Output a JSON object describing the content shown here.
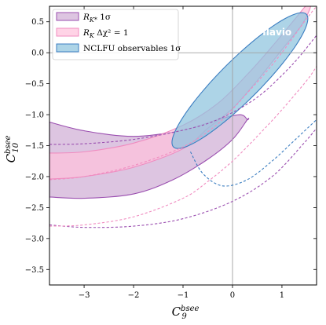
{
  "chart_data": {
    "type": "contour",
    "xlabel": {
      "main": "C",
      "sub": "9",
      "sup": "bsee"
    },
    "ylabel": {
      "main": "C",
      "sub": "10",
      "sup": "bsee"
    },
    "xlim": [
      -3.7,
      1.7
    ],
    "ylim": [
      -3.75,
      0.75
    ],
    "xticks": [
      -3,
      -2,
      -1,
      0,
      1
    ],
    "xtick_labels": [
      "−3",
      "−2",
      "−1",
      "0",
      "1"
    ],
    "yticks": [
      -3.5,
      -3.0,
      -2.5,
      -2.0,
      -1.5,
      -1.0,
      -0.5,
      0.0,
      0.5
    ],
    "ytick_labels": [
      "−3.5",
      "−3.0",
      "−2.5",
      "−2.0",
      "−1.5",
      "−1.0",
      "−0.5",
      "0.0",
      "0.5"
    ],
    "reference_lines": {
      "x": 0,
      "y": 0
    },
    "grid": false,
    "legend_position": "top-left",
    "watermark": "flavio",
    "series": [
      {
        "name": "R_{K*} 1σ",
        "legend_main": "R",
        "legend_sub": "K*",
        "legend_suffix": " 1σ",
        "color": "#9b4fb0",
        "fill": "#c8a2cf",
        "fill_opacity": 0.62,
        "band_outer": [
          [
            -3.7,
            -1.12
          ],
          [
            -3.0,
            -1.26
          ],
          [
            -2.0,
            -1.35
          ],
          [
            -1.0,
            -1.25
          ],
          [
            -0.3,
            -1.08
          ],
          [
            0.15,
            -1.0
          ],
          [
            0.3,
            -1.08
          ]
        ],
        "band_inner": [
          [
            0.3,
            -1.08
          ],
          [
            0.0,
            -1.4
          ],
          [
            -0.5,
            -1.72
          ],
          [
            -1.2,
            -2.05
          ],
          [
            -2.0,
            -2.28
          ],
          [
            -3.0,
            -2.35
          ],
          [
            -3.7,
            -2.33
          ]
        ],
        "dashed_curves": [
          [
            [
              -3.7,
              -1.48
            ],
            [
              -3.0,
              -1.47
            ],
            [
              -2.0,
              -1.4
            ],
            [
              -1.0,
              -1.25
            ],
            [
              -0.3,
              -1.08
            ],
            [
              0.5,
              -0.72
            ],
            [
              1.2,
              -0.2
            ],
            [
              1.7,
              0.28
            ]
          ],
          [
            [
              -3.7,
              -2.78
            ],
            [
              -3.0,
              -2.82
            ],
            [
              -2.0,
              -2.8
            ],
            [
              -1.0,
              -2.68
            ],
            [
              0.0,
              -2.4
            ],
            [
              0.8,
              -2.0
            ],
            [
              1.4,
              -1.5
            ],
            [
              1.7,
              -1.22
            ]
          ]
        ]
      },
      {
        "name": "R_K Δχ² = 1",
        "legend_main": "R",
        "legend_sub": "K",
        "legend_suffix": " Δχ² = 1",
        "color": "#f08cc0",
        "fill": "#ffc0dc",
        "fill_opacity": 0.7,
        "band_outer": [
          [
            -3.7,
            -1.62
          ],
          [
            -3.0,
            -1.6
          ],
          [
            -2.0,
            -1.46
          ],
          [
            -1.0,
            -1.17
          ],
          [
            -0.3,
            -0.82
          ],
          [
            0.3,
            -0.35
          ],
          [
            0.8,
            0.1
          ],
          [
            1.3,
            0.58
          ],
          [
            1.48,
            0.75
          ]
        ],
        "band_inner": [
          [
            1.58,
            0.75
          ],
          [
            1.4,
            0.45
          ],
          [
            1.0,
            0.05
          ],
          [
            0.5,
            -0.45
          ],
          [
            0.0,
            -0.9
          ],
          [
            -0.5,
            -1.22
          ],
          [
            -1.0,
            -1.55
          ],
          [
            -2.0,
            -1.85
          ],
          [
            -3.0,
            -2.0
          ],
          [
            -3.7,
            -2.04
          ]
        ],
        "dashed_curves": [
          [
            [
              -3.7,
              -2.05
            ],
            [
              -3.0,
              -2.0
            ],
            [
              -2.0,
              -1.82
            ],
            [
              -1.0,
              -1.52
            ],
            [
              -0.3,
              -1.15
            ],
            [
              0.3,
              -0.65
            ],
            [
              0.9,
              -0.1
            ],
            [
              1.5,
              0.55
            ],
            [
              1.7,
              0.75
            ]
          ],
          [
            [
              -3.7,
              -2.8
            ],
            [
              -3.0,
              -2.78
            ],
            [
              -2.0,
              -2.65
            ],
            [
              -1.0,
              -2.35
            ],
            [
              -0.5,
              -2.08
            ],
            [
              0.0,
              -1.75
            ],
            [
              0.5,
              -1.35
            ],
            [
              1.0,
              -0.92
            ],
            [
              1.5,
              -0.45
            ],
            [
              1.7,
              -0.22
            ]
          ]
        ]
      },
      {
        "name": "NCLFU observables 1σ",
        "legend_main": "NCLFU observables 1σ",
        "legend_sub": "",
        "legend_suffix": "",
        "color": "#3c7ec1",
        "fill": "#8ec4de",
        "fill_opacity": 0.72,
        "ellipse": {
          "cx": 0.15,
          "cy": -0.45,
          "rx": 1.72,
          "ry": 0.36,
          "angle_deg": 38.0,
          "clip_top": 0.75
        },
        "dashed_curves": [
          [
            [
              -0.85,
              -1.6
            ],
            [
              -0.6,
              -1.95
            ],
            [
              -0.2,
              -2.15
            ],
            [
              0.3,
              -2.05
            ],
            [
              0.8,
              -1.75
            ],
            [
              1.3,
              -1.38
            ],
            [
              1.7,
              -1.08
            ]
          ]
        ]
      }
    ]
  }
}
